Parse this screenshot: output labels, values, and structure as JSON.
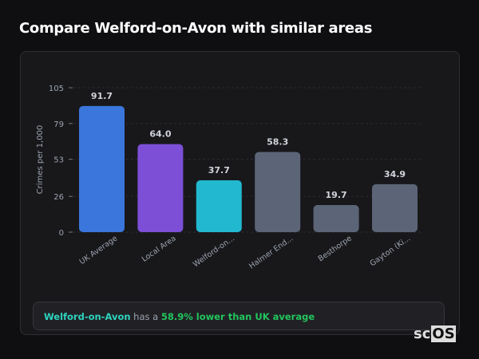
{
  "title": "Compare Welford-on-Avon with similar areas",
  "summary": {
    "area": "Welford-on-Avon",
    "mid": " has a ",
    "highlight": "58.9% lower than UK average"
  },
  "logo": {
    "a": "sc",
    "b": "OS"
  },
  "chart_data": {
    "type": "bar",
    "ylabel": "Crimes per 1,000",
    "ylim": [
      0,
      105
    ],
    "yticks": [
      0,
      26,
      53,
      79,
      105
    ],
    "grid": true,
    "categories": [
      "UK Average",
      "Local Area",
      "Welford-on...",
      "Halmer End...",
      "Besthorpe",
      "Gayton (Ki..."
    ],
    "values": [
      91.7,
      64.0,
      37.7,
      58.3,
      19.7,
      34.9
    ],
    "data_labels": [
      "91.7",
      "64.0",
      "37.7",
      "58.3",
      "19.7",
      "34.9"
    ],
    "colors": [
      "#3b76dc",
      "#7c4fd6",
      "#22b8d0",
      "#5b6577",
      "#5b6577",
      "#5b6577"
    ]
  }
}
